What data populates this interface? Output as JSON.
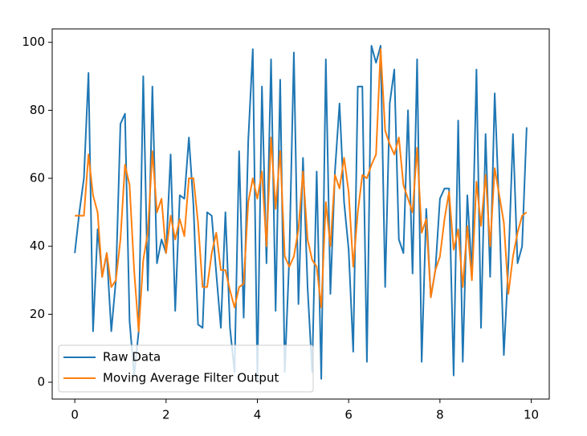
{
  "chart_data": {
    "type": "line",
    "x": [
      0,
      0.1,
      0.2,
      0.3,
      0.4,
      0.5,
      0.6,
      0.7,
      0.8,
      0.9,
      1,
      1.1,
      1.2,
      1.3,
      1.4,
      1.5,
      1.6,
      1.7,
      1.8,
      1.9,
      2,
      2.1,
      2.2,
      2.3,
      2.4,
      2.5,
      2.6,
      2.7,
      2.8,
      2.9,
      3,
      3.1,
      3.2,
      3.3,
      3.4,
      3.5,
      3.6,
      3.7,
      3.8,
      3.9,
      4,
      4.1,
      4.2,
      4.3,
      4.4,
      4.5,
      4.6,
      4.7,
      4.8,
      4.9,
      5,
      5.1,
      5.2,
      5.3,
      5.4,
      5.5,
      5.6,
      5.7,
      5.8,
      5.9,
      6,
      6.1,
      6.2,
      6.3,
      6.4,
      6.5,
      6.6,
      6.7,
      6.8,
      6.9,
      7,
      7.1,
      7.2,
      7.3,
      7.4,
      7.5,
      7.6,
      7.7,
      7.8,
      7.9,
      8,
      8.1,
      8.2,
      8.3,
      8.4,
      8.5,
      8.6,
      8.7,
      8.8,
      8.9,
      9,
      9.1,
      9.2,
      9.3,
      9.4,
      9.5,
      9.6,
      9.7,
      9.8,
      9.9
    ],
    "series": [
      {
        "name": "Raw Data",
        "color": "#1f77b4",
        "values": [
          38,
          50,
          60,
          91,
          15,
          45,
          31,
          38,
          15,
          30,
          76,
          79,
          18,
          2,
          15,
          90,
          27,
          87,
          35,
          42,
          38,
          67,
          21,
          55,
          54,
          72,
          52,
          17,
          16,
          50,
          49,
          32,
          16,
          50,
          16,
          3,
          68,
          19,
          71,
          98,
          1,
          87,
          35,
          95,
          21,
          89,
          3,
          37,
          97,
          23,
          66,
          28,
          3,
          62,
          1,
          95,
          26,
          62,
          82,
          53,
          39,
          9,
          87,
          87,
          6,
          99,
          94,
          99,
          28,
          82,
          92,
          42,
          38,
          80,
          32,
          95,
          6,
          51,
          25,
          33,
          54,
          57,
          57,
          2,
          77,
          6,
          55,
          32,
          92,
          16,
          73,
          31,
          85,
          50,
          8,
          35,
          73,
          35,
          40,
          75
        ]
      },
      {
        "name": "Moving Average Filter Output",
        "color": "#ff7f0e",
        "values": [
          49,
          49,
          49,
          67,
          55,
          50,
          31,
          38,
          28,
          30,
          42,
          64,
          58,
          33,
          15,
          36,
          44,
          68,
          50,
          54,
          38,
          49,
          42,
          48,
          43,
          60,
          60,
          47,
          28,
          28,
          38,
          44,
          33,
          33,
          27,
          22,
          28,
          29,
          53,
          60,
          54,
          62,
          40,
          72,
          51,
          68,
          37,
          34,
          37,
          45,
          62,
          42,
          36,
          34,
          22,
          53,
          40,
          61,
          57,
          66,
          56,
          34,
          50,
          61,
          60,
          64,
          67,
          98,
          74,
          70,
          67,
          72,
          58,
          54,
          50,
          69,
          44,
          48,
          25,
          33,
          37,
          48,
          56,
          39,
          45,
          28,
          46,
          30,
          59,
          46,
          61,
          40,
          63,
          55,
          47,
          26,
          37,
          44,
          49,
          50
        ]
      }
    ],
    "xlim": [
      -0.495,
      10.395
    ],
    "ylim": [
      -4.95,
      103.95
    ],
    "xticks": [
      0,
      2,
      4,
      6,
      8,
      10
    ],
    "yticks": [
      0,
      20,
      40,
      60,
      80,
      100
    ],
    "legend": "lower left"
  }
}
